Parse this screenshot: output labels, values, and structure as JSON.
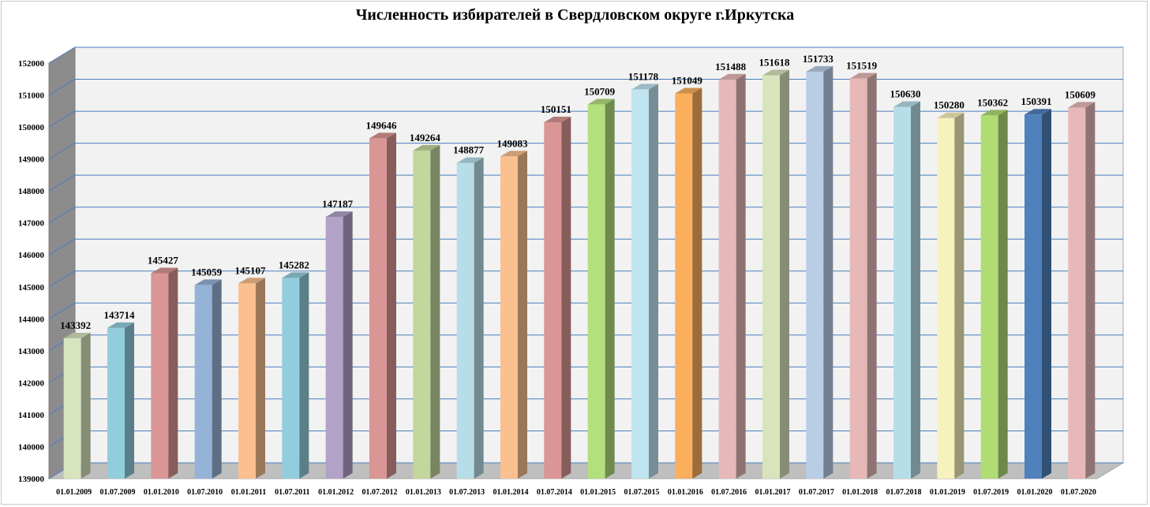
{
  "chart_data": {
    "type": "bar",
    "title": "Численность избирателей в Свердловском округе г.Иркутска",
    "xlabel": "",
    "ylabel": "",
    "ylim": [
      139000,
      152000
    ],
    "yticks": [
      139000,
      140000,
      141000,
      142000,
      143000,
      144000,
      145000,
      146000,
      147000,
      148000,
      149000,
      150000,
      151000,
      152000
    ],
    "grid": true,
    "legend": "none",
    "style": "3d-columns",
    "categories": [
      "01.01.2009",
      "01.07.2009",
      "01.01.2010",
      "01.07.2010",
      "01.01.2011",
      "01.07.2011",
      "01.01.2012",
      "01.07.2012",
      "01.01.2013",
      "01.07.2013",
      "01.01.2014",
      "01.07.2014",
      "01.01.2015",
      "01.07.2015",
      "01.01.2016",
      "01.07.2016",
      "01.01.2017",
      "01.07.2017",
      "01.01.2018",
      "01.07.2018",
      "01.01.2019",
      "01.07.2019",
      "01.01.2020",
      "01.07.2020"
    ],
    "values": [
      143392,
      143714,
      145427,
      145059,
      145107,
      145282,
      147187,
      149646,
      149264,
      148877,
      149083,
      150151,
      150709,
      151178,
      151049,
      151488,
      151618,
      151733,
      151519,
      150630,
      150280,
      150362,
      150391,
      150609
    ],
    "colors": [
      "#d7e4bd",
      "#92cddc",
      "#d99694",
      "#95b3d7",
      "#fac090",
      "#93cddd",
      "#b3a2c7",
      "#d99694",
      "#c3d69b",
      "#b7dee8",
      "#fac090",
      "#d99694",
      "#b3df7c",
      "#c0e4f0",
      "#fbae5c",
      "#e6b9b8",
      "#d8e4bc",
      "#b9cde5",
      "#e6b9b8",
      "#b7dee8",
      "#f7f1bd",
      "#b0dc74",
      "#4f81bd",
      "#e6b9b8"
    ]
  }
}
